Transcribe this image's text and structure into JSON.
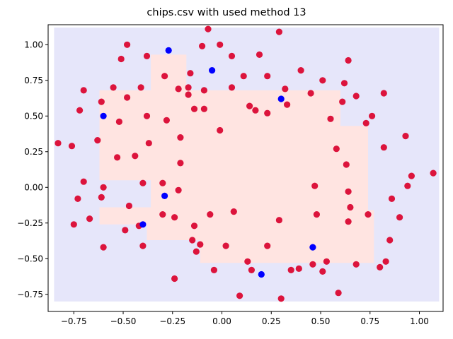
{
  "chart_data": {
    "type": "scatter",
    "title": "chips.csv with used method 13",
    "xlabel": "",
    "ylabel": "",
    "xlim": [
      -0.88,
      1.12
    ],
    "ylim": [
      -0.87,
      1.14
    ],
    "xticks": [
      -0.75,
      -0.5,
      -0.25,
      0.0,
      0.25,
      0.5,
      0.75,
      1.0
    ],
    "xtick_labels": [
      "−0.75",
      "−0.50",
      "−0.25",
      "0.00",
      "0.25",
      "0.50",
      "0.75",
      "1.00"
    ],
    "yticks": [
      -0.75,
      -0.5,
      -0.25,
      0.0,
      0.25,
      0.5,
      0.75,
      1.0
    ],
    "ytick_labels": [
      "−0.75",
      "−0.50",
      "−0.25",
      "0.00",
      "0.25",
      "0.50",
      "0.75",
      "1.00"
    ],
    "grid": false,
    "legend": "none",
    "colors": {
      "class_red": "#dc143c",
      "class_blue": "#0000ff",
      "region_blue": "#e6e6fa",
      "region_red": "#ffe4e1"
    },
    "decision_regions": [
      {
        "label": "class-0-region",
        "color": "region_blue",
        "polygons": [
          [
            [
              -0.85,
              -0.8
            ],
            [
              1.1,
              -0.8
            ],
            [
              1.1,
              1.12
            ],
            [
              -0.85,
              1.12
            ]
          ]
        ]
      },
      {
        "label": "class-1-region",
        "color": "region_red",
        "polygons": [
          [
            [
              -0.62,
              0.05
            ],
            [
              -0.62,
              0.68
            ],
            [
              -0.36,
              0.68
            ],
            [
              -0.36,
              0.93
            ],
            [
              -0.18,
              0.93
            ],
            [
              -0.18,
              0.68
            ],
            [
              0.6,
              0.68
            ],
            [
              0.6,
              0.43
            ],
            [
              0.74,
              0.43
            ],
            [
              0.74,
              -0.16
            ],
            [
              0.77,
              -0.16
            ],
            [
              0.77,
              -0.53
            ],
            [
              -0.11,
              -0.53
            ],
            [
              -0.11,
              -0.37
            ],
            [
              -0.38,
              -0.37
            ],
            [
              -0.38,
              -0.26
            ],
            [
              -0.62,
              -0.26
            ],
            [
              -0.62,
              -0.14
            ],
            [
              -0.36,
              -0.14
            ],
            [
              -0.36,
              0.05
            ]
          ]
        ]
      }
    ],
    "series": [
      {
        "color": "class_red",
        "points": [
          [
            -0.83,
            0.31
          ],
          [
            -0.76,
            0.29
          ],
          [
            -0.72,
            0.54
          ],
          [
            -0.7,
            0.68
          ],
          [
            -0.75,
            -0.26
          ],
          [
            -0.73,
            -0.08
          ],
          [
            -0.7,
            0.04
          ],
          [
            -0.67,
            -0.22
          ],
          [
            -0.63,
            0.33
          ],
          [
            -0.61,
            0.6
          ],
          [
            -0.61,
            -0.07
          ],
          [
            -0.6,
            -0.42
          ],
          [
            -0.6,
            0.0
          ],
          [
            -0.55,
            0.7
          ],
          [
            -0.53,
            0.21
          ],
          [
            -0.52,
            0.46
          ],
          [
            -0.51,
            0.9
          ],
          [
            -0.49,
            -0.3
          ],
          [
            -0.48,
            1.0
          ],
          [
            -0.48,
            0.63
          ],
          [
            -0.47,
            -0.13
          ],
          [
            -0.44,
            0.22
          ],
          [
            -0.42,
            -0.27
          ],
          [
            -0.41,
            0.7
          ],
          [
            -0.4,
            -0.41
          ],
          [
            -0.4,
            0.03
          ],
          [
            -0.38,
            0.92
          ],
          [
            -0.38,
            0.5
          ],
          [
            -0.37,
            0.31
          ],
          [
            -0.3,
            0.03
          ],
          [
            -0.3,
            -0.19
          ],
          [
            -0.29,
            0.78
          ],
          [
            -0.28,
            0.47
          ],
          [
            -0.24,
            -0.64
          ],
          [
            -0.24,
            -0.21
          ],
          [
            -0.22,
            0.69
          ],
          [
            -0.22,
            -0.02
          ],
          [
            -0.21,
            0.35
          ],
          [
            -0.21,
            0.17
          ],
          [
            -0.17,
            0.7
          ],
          [
            -0.17,
            0.65
          ],
          [
            -0.16,
            0.8
          ],
          [
            -0.15,
            -0.37
          ],
          [
            -0.14,
            -0.27
          ],
          [
            -0.14,
            0.55
          ],
          [
            -0.13,
            -0.45
          ],
          [
            -0.11,
            -0.4
          ],
          [
            -0.1,
            0.99
          ],
          [
            -0.09,
            0.55
          ],
          [
            -0.09,
            0.68
          ],
          [
            -0.07,
            1.11
          ],
          [
            -0.06,
            -0.19
          ],
          [
            -0.04,
            -0.58
          ],
          [
            -0.01,
            1.0
          ],
          [
            -0.01,
            0.4
          ],
          [
            0.02,
            -0.41
          ],
          [
            0.05,
            0.92
          ],
          [
            0.05,
            0.7
          ],
          [
            0.06,
            -0.17
          ],
          [
            0.09,
            -0.76
          ],
          [
            0.11,
            0.78
          ],
          [
            0.13,
            -0.52
          ],
          [
            0.14,
            0.57
          ],
          [
            0.15,
            -0.58
          ],
          [
            0.17,
            0.54
          ],
          [
            0.19,
            0.93
          ],
          [
            0.23,
            0.78
          ],
          [
            0.23,
            0.52
          ],
          [
            0.23,
            -0.41
          ],
          [
            0.29,
            1.09
          ],
          [
            0.29,
            -0.23
          ],
          [
            0.3,
            -0.78
          ],
          [
            0.32,
            0.69
          ],
          [
            0.33,
            0.58
          ],
          [
            0.35,
            -0.58
          ],
          [
            0.39,
            -0.57
          ],
          [
            0.4,
            0.82
          ],
          [
            0.45,
            0.66
          ],
          [
            0.46,
            -0.54
          ],
          [
            0.47,
            0.01
          ],
          [
            0.48,
            -0.19
          ],
          [
            0.51,
            0.75
          ],
          [
            0.51,
            -0.59
          ],
          [
            0.53,
            -0.52
          ],
          [
            0.55,
            0.48
          ],
          [
            0.58,
            0.27
          ],
          [
            0.59,
            -0.74
          ],
          [
            0.61,
            0.6
          ],
          [
            0.62,
            0.73
          ],
          [
            0.63,
            0.16
          ],
          [
            0.64,
            0.89
          ],
          [
            0.64,
            -0.03
          ],
          [
            0.64,
            -0.24
          ],
          [
            0.65,
            -0.14
          ],
          [
            0.68,
            0.64
          ],
          [
            0.68,
            -0.54
          ],
          [
            0.73,
            0.45
          ],
          [
            0.74,
            -0.19
          ],
          [
            0.76,
            0.5
          ],
          [
            0.8,
            -0.56
          ],
          [
            0.82,
            0.66
          ],
          [
            0.82,
            0.28
          ],
          [
            0.83,
            -0.52
          ],
          [
            0.85,
            -0.37
          ],
          [
            0.86,
            -0.08
          ],
          [
            0.9,
            -0.21
          ],
          [
            0.93,
            0.36
          ],
          [
            0.94,
            0.01
          ],
          [
            0.96,
            0.08
          ],
          [
            1.07,
            0.1
          ]
        ]
      },
      {
        "color": "class_blue",
        "points": [
          [
            -0.6,
            0.5
          ],
          [
            -0.4,
            -0.26
          ],
          [
            -0.29,
            -0.06
          ],
          [
            -0.27,
            0.96
          ],
          [
            -0.05,
            0.82
          ],
          [
            0.2,
            -0.61
          ],
          [
            0.3,
            0.62
          ],
          [
            0.46,
            -0.42
          ]
        ]
      }
    ]
  }
}
